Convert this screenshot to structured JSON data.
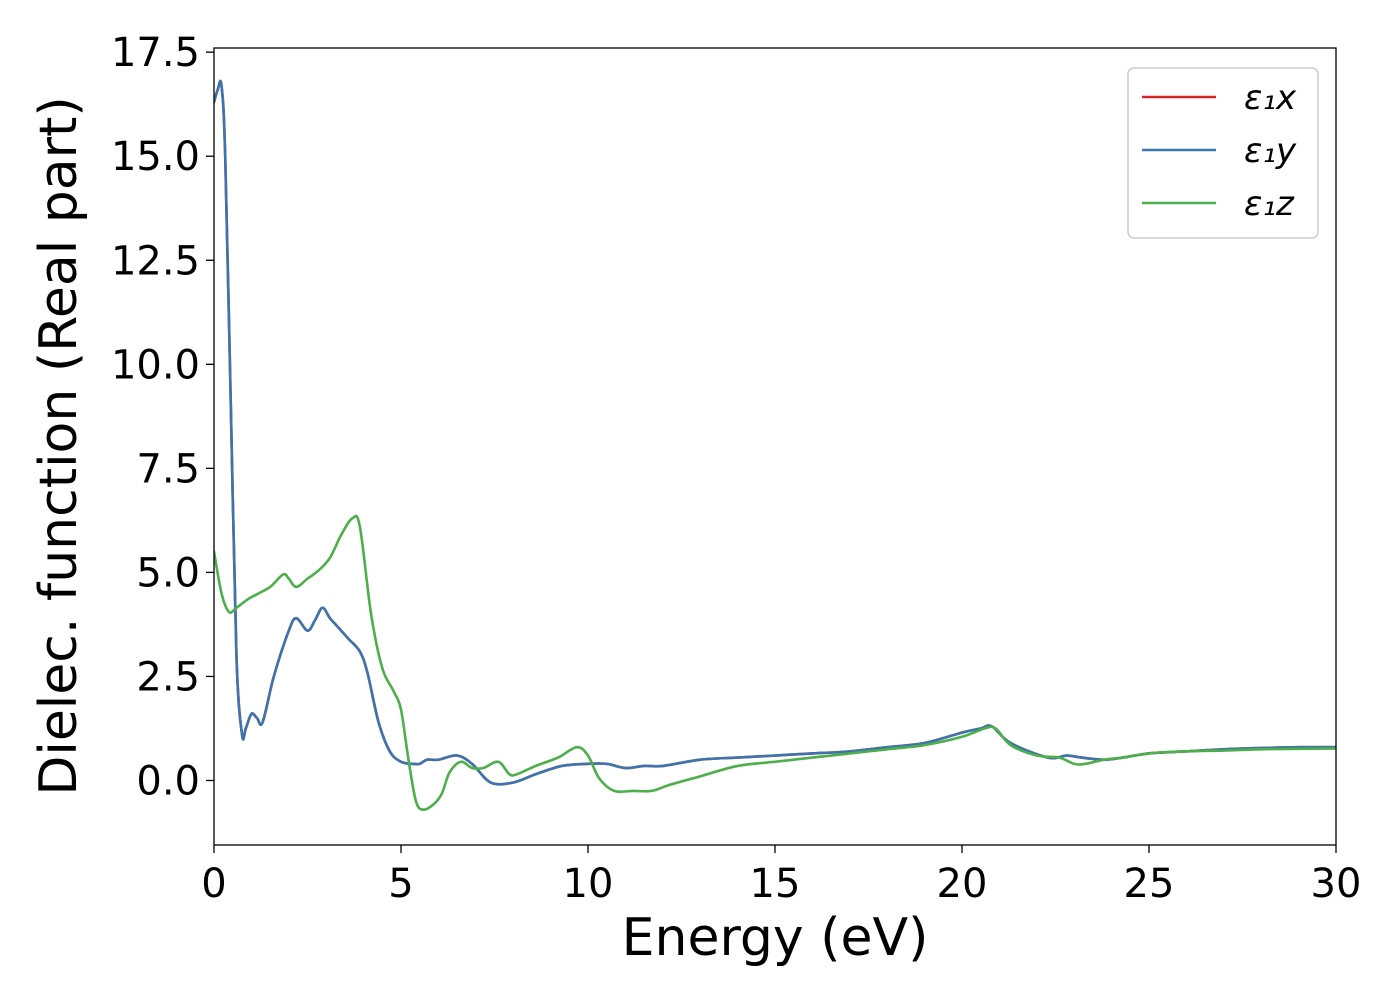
{
  "chart_data": {
    "type": "line",
    "xlabel": "Energy (eV)",
    "ylabel": "Dielec. function (Real part)",
    "xlim": [
      0,
      30
    ],
    "ylim": [
      -1.55,
      17.6
    ],
    "xticks": [
      "0",
      "5",
      "10",
      "15",
      "20",
      "25",
      "30"
    ],
    "yticks": [
      "0.0",
      "2.5",
      "5.0",
      "7.5",
      "10.0",
      "12.5",
      "15.0",
      "17.5"
    ],
    "legend_position": "top-right",
    "grid": false,
    "series": [
      {
        "name": "ε₁x",
        "color": "#d62728",
        "x": [
          0,
          0.1,
          0.2,
          0.3,
          0.45,
          0.6,
          0.75,
          0.85,
          1.0,
          1.15,
          1.3,
          1.6,
          2.0,
          2.2,
          2.5,
          2.7,
          2.9,
          3.1,
          3.3,
          3.6,
          3.9,
          4.1,
          4.4,
          4.7,
          5.0,
          5.3,
          5.5,
          5.7,
          6.0,
          6.5,
          6.9,
          7.4,
          8.0,
          8.6,
          9.3,
          10.0,
          10.5,
          11.0,
          11.5,
          12.0,
          13.0,
          14.0,
          15.0,
          16.0,
          17.0,
          18.0,
          19.0,
          20.0,
          20.5,
          20.8,
          21.3,
          22.3,
          22.8,
          23.2,
          23.8,
          24.3,
          25.0,
          26.0,
          27.0,
          28.0,
          29.0,
          30.0
        ],
        "values": [
          16.3,
          16.6,
          16.7,
          15.0,
          9.0,
          3.0,
          1.1,
          1.25,
          1.6,
          1.5,
          1.4,
          2.5,
          3.6,
          3.9,
          3.6,
          3.85,
          4.15,
          3.9,
          3.7,
          3.4,
          3.1,
          2.6,
          1.4,
          0.7,
          0.45,
          0.4,
          0.4,
          0.5,
          0.5,
          0.6,
          0.4,
          -0.05,
          -0.05,
          0.15,
          0.35,
          0.4,
          0.4,
          0.3,
          0.35,
          0.35,
          0.5,
          0.55,
          0.6,
          0.65,
          0.7,
          0.8,
          0.9,
          1.15,
          1.25,
          1.3,
          0.9,
          0.55,
          0.6,
          0.55,
          0.5,
          0.55,
          0.65,
          0.7,
          0.75,
          0.78,
          0.8,
          0.8
        ]
      },
      {
        "name": "ε₁y",
        "color": "#3b75af",
        "x": [
          0,
          0.1,
          0.2,
          0.3,
          0.45,
          0.6,
          0.75,
          0.85,
          1.0,
          1.15,
          1.3,
          1.6,
          2.0,
          2.2,
          2.5,
          2.7,
          2.9,
          3.1,
          3.3,
          3.6,
          3.9,
          4.1,
          4.4,
          4.7,
          5.0,
          5.3,
          5.5,
          5.7,
          6.0,
          6.5,
          6.9,
          7.4,
          8.0,
          8.6,
          9.3,
          10.0,
          10.5,
          11.0,
          11.5,
          12.0,
          13.0,
          14.0,
          15.0,
          16.0,
          17.0,
          18.0,
          19.0,
          20.0,
          20.5,
          20.8,
          21.3,
          22.3,
          22.8,
          23.2,
          23.8,
          24.3,
          25.0,
          26.0,
          27.0,
          28.0,
          29.0,
          30.0
        ],
        "values": [
          16.3,
          16.6,
          16.7,
          15.0,
          9.0,
          3.0,
          1.1,
          1.25,
          1.6,
          1.5,
          1.4,
          2.5,
          3.6,
          3.9,
          3.6,
          3.85,
          4.15,
          3.9,
          3.7,
          3.4,
          3.1,
          2.6,
          1.4,
          0.7,
          0.45,
          0.4,
          0.4,
          0.5,
          0.5,
          0.6,
          0.4,
          -0.05,
          -0.05,
          0.15,
          0.35,
          0.4,
          0.4,
          0.3,
          0.35,
          0.35,
          0.5,
          0.55,
          0.6,
          0.65,
          0.7,
          0.8,
          0.9,
          1.15,
          1.25,
          1.3,
          0.9,
          0.55,
          0.6,
          0.55,
          0.5,
          0.55,
          0.65,
          0.7,
          0.75,
          0.78,
          0.8,
          0.8
        ]
      },
      {
        "name": "ε₁z",
        "color": "#4daf4a",
        "x": [
          0,
          0.2,
          0.4,
          0.6,
          0.9,
          1.2,
          1.5,
          1.85,
          2.0,
          2.2,
          2.5,
          2.8,
          3.1,
          3.4,
          3.7,
          3.9,
          4.2,
          4.5,
          4.8,
          5.0,
          5.2,
          5.4,
          5.6,
          5.9,
          6.1,
          6.3,
          6.6,
          6.9,
          7.2,
          7.6,
          7.9,
          8.1,
          8.6,
          9.2,
          9.7,
          10.0,
          10.3,
          10.7,
          11.2,
          11.7,
          12.2,
          13.0,
          14.0,
          15.0,
          16.0,
          17.0,
          18.0,
          19.0,
          20.0,
          20.6,
          20.9,
          21.3,
          22.0,
          22.6,
          23.0,
          23.3,
          23.8,
          24.3,
          25.0,
          26.0,
          27.0,
          28.0,
          29.0,
          30.0
        ],
        "values": [
          5.5,
          4.5,
          4.05,
          4.15,
          4.35,
          4.5,
          4.65,
          4.95,
          4.85,
          4.65,
          4.85,
          5.05,
          5.35,
          5.9,
          6.3,
          6.1,
          4.0,
          2.7,
          2.15,
          1.7,
          0.5,
          -0.5,
          -0.7,
          -0.55,
          -0.3,
          0.2,
          0.45,
          0.3,
          0.3,
          0.45,
          0.15,
          0.15,
          0.35,
          0.55,
          0.8,
          0.6,
          0.05,
          -0.25,
          -0.25,
          -0.25,
          -0.1,
          0.1,
          0.35,
          0.45,
          0.55,
          0.65,
          0.75,
          0.85,
          1.05,
          1.25,
          1.25,
          0.85,
          0.6,
          0.55,
          0.4,
          0.4,
          0.5,
          0.55,
          0.65,
          0.7,
          0.72,
          0.75,
          0.76,
          0.77
        ]
      }
    ]
  }
}
